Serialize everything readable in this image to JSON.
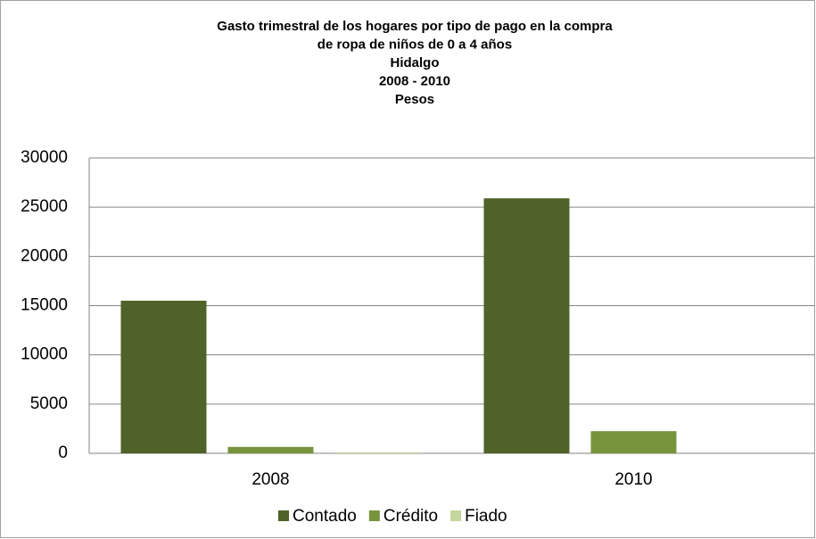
{
  "chart_data": {
    "type": "bar",
    "title": [
      "Gasto trimestral de los hogares por tipo de pago en la compra",
      "de ropa de niños de 0 a 4 años",
      "Hidalgo",
      "2008 - 2010",
      "Pesos"
    ],
    "categories": [
      "2008",
      "2010"
    ],
    "series": [
      {
        "name": "Contado",
        "color": "#4f6228",
        "values": [
          15500,
          25900
        ]
      },
      {
        "name": "Crédito",
        "color": "#77933c",
        "values": [
          650,
          2250
        ]
      },
      {
        "name": "Fiado",
        "color": "#c3d69b",
        "values": [
          100,
          0
        ]
      }
    ],
    "ylim": [
      0,
      30000
    ],
    "yticks": [
      0,
      5000,
      10000,
      15000,
      20000,
      25000,
      30000
    ],
    "grid": true,
    "legend": "bottom"
  }
}
